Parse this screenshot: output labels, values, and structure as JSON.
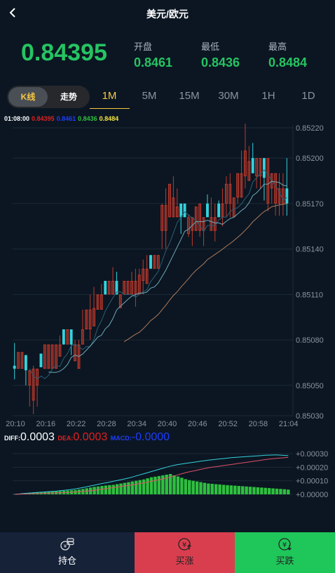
{
  "header": {
    "title": "美元/欧元"
  },
  "quote": {
    "price": "0.84395",
    "open_label": "开盘",
    "open": "0.8461",
    "low_label": "最低",
    "low": "0.8436",
    "high_label": "最高",
    "high": "0.8484"
  },
  "tabs": {
    "kline": "K线",
    "trend": "走势",
    "timeframes": [
      "1M",
      "5M",
      "15M",
      "30M",
      "1H",
      "1D"
    ],
    "active_timeframe": "1M"
  },
  "legend": {
    "time": "01:08:00",
    "values": [
      "0.84395",
      "0.8461",
      "0.8436",
      "0.8484"
    ],
    "colors": [
      "#e02020",
      "#1e3cff",
      "#2fbf3f",
      "#f5e642"
    ]
  },
  "chart_data": [
    {
      "type": "candlestick",
      "x_ticks": [
        "20:10",
        "20:16",
        "20:22",
        "20:28",
        "20:34",
        "20:40",
        "20:46",
        "20:52",
        "20:58",
        "21:04"
      ],
      "y_ticks": [
        "0.85220",
        "0.85200",
        "0.85170",
        "0.85140",
        "0.85110",
        "0.85080",
        "0.85050",
        "0.85030"
      ],
      "ylim": [
        0.8503,
        0.8522
      ],
      "colors": {
        "up": "#34d3dc",
        "down": "#c0392b",
        "ma1": "#2b5f73",
        "ma2": "#b07a5a",
        "ma3": "#6fa8b8"
      },
      "candles": [
        {
          "o": 0.85061,
          "c": 0.85063,
          "h": 0.85078,
          "l": 0.85054
        },
        {
          "o": 0.85072,
          "c": 0.85061,
          "h": 0.85072,
          "l": 0.85061
        },
        {
          "o": 0.85072,
          "c": 0.85061,
          "h": 0.85072,
          "l": 0.85061
        },
        {
          "o": 0.8506,
          "c": 0.8507,
          "h": 0.8507,
          "l": 0.8505
        },
        {
          "o": 0.8506,
          "c": 0.8505,
          "h": 0.8506,
          "l": 0.85036
        },
        {
          "o": 0.85061,
          "c": 0.8504,
          "h": 0.85063,
          "l": 0.85031
        },
        {
          "o": 0.85061,
          "c": 0.8505,
          "h": 0.85061,
          "l": 0.85036
        },
        {
          "o": 0.85062,
          "c": 0.85071,
          "h": 0.85071,
          "l": 0.85062
        },
        {
          "o": 0.85077,
          "c": 0.85061,
          "h": 0.85077,
          "l": 0.85061
        },
        {
          "o": 0.85077,
          "c": 0.85061,
          "h": 0.85077,
          "l": 0.85061
        },
        {
          "o": 0.85077,
          "c": 0.85061,
          "h": 0.85077,
          "l": 0.85061
        },
        {
          "o": 0.85077,
          "c": 0.85061,
          "h": 0.85077,
          "l": 0.85061
        },
        {
          "o": 0.85077,
          "c": 0.85069,
          "h": 0.85083,
          "l": 0.85069
        },
        {
          "o": 0.85077,
          "c": 0.85087,
          "h": 0.85087,
          "l": 0.85077
        },
        {
          "o": 0.85087,
          "c": 0.85077,
          "h": 0.85087,
          "l": 0.85077
        },
        {
          "o": 0.85077,
          "c": 0.85087,
          "h": 0.85087,
          "l": 0.8507
        },
        {
          "o": 0.85077,
          "c": 0.85066,
          "h": 0.8508,
          "l": 0.85066
        },
        {
          "o": 0.85077,
          "c": 0.85061,
          "h": 0.8508,
          "l": 0.85061
        },
        {
          "o": 0.85087,
          "c": 0.85077,
          "h": 0.851,
          "l": 0.85077
        },
        {
          "o": 0.851,
          "c": 0.85087,
          "h": 0.851,
          "l": 0.85087
        },
        {
          "o": 0.851,
          "c": 0.85087,
          "h": 0.8511,
          "l": 0.8508
        },
        {
          "o": 0.85101,
          "c": 0.85089,
          "h": 0.85115,
          "l": 0.85089
        },
        {
          "o": 0.8511,
          "c": 0.851,
          "h": 0.8511,
          "l": 0.851
        },
        {
          "o": 0.8511,
          "c": 0.851,
          "h": 0.85117,
          "l": 0.851
        },
        {
          "o": 0.8511,
          "c": 0.85119,
          "h": 0.85119,
          "l": 0.8511
        },
        {
          "o": 0.85119,
          "c": 0.8511,
          "h": 0.85119,
          "l": 0.8511
        },
        {
          "o": 0.85119,
          "c": 0.8511,
          "h": 0.85128,
          "l": 0.8511
        },
        {
          "o": 0.8511,
          "c": 0.85119,
          "h": 0.85125,
          "l": 0.8511
        },
        {
          "o": 0.8511,
          "c": 0.85101,
          "h": 0.8511,
          "l": 0.85101
        },
        {
          "o": 0.85119,
          "c": 0.8511,
          "h": 0.85119,
          "l": 0.8511
        },
        {
          "o": 0.85119,
          "c": 0.8511,
          "h": 0.85119,
          "l": 0.8511
        },
        {
          "o": 0.85119,
          "c": 0.8511,
          "h": 0.85125,
          "l": 0.8511
        },
        {
          "o": 0.85119,
          "c": 0.8511,
          "h": 0.85127,
          "l": 0.85102
        },
        {
          "o": 0.85123,
          "c": 0.8511,
          "h": 0.85127,
          "l": 0.8511
        },
        {
          "o": 0.85127,
          "c": 0.85119,
          "h": 0.85133,
          "l": 0.8511
        },
        {
          "o": 0.85127,
          "c": 0.85117,
          "h": 0.85136,
          "l": 0.85117
        },
        {
          "o": 0.85127,
          "c": 0.85136,
          "h": 0.85136,
          "l": 0.85127
        },
        {
          "o": 0.85136,
          "c": 0.85127,
          "h": 0.85136,
          "l": 0.85127
        },
        {
          "o": 0.85136,
          "c": 0.85127,
          "h": 0.85136,
          "l": 0.85127
        },
        {
          "o": 0.85169,
          "c": 0.85152,
          "h": 0.8517,
          "l": 0.8514
        },
        {
          "o": 0.85169,
          "c": 0.85152,
          "h": 0.8518,
          "l": 0.8514
        },
        {
          "o": 0.85183,
          "c": 0.85161,
          "h": 0.85183,
          "l": 0.85161
        },
        {
          "o": 0.85174,
          "c": 0.85161,
          "h": 0.85188,
          "l": 0.85161
        },
        {
          "o": 0.85168,
          "c": 0.85161,
          "h": 0.8518,
          "l": 0.85161
        },
        {
          "o": 0.85161,
          "c": 0.8517,
          "h": 0.8517,
          "l": 0.8515
        },
        {
          "o": 0.85161,
          "c": 0.8517,
          "h": 0.8517,
          "l": 0.85161
        },
        {
          "o": 0.85161,
          "c": 0.8515,
          "h": 0.85163,
          "l": 0.85148
        },
        {
          "o": 0.85161,
          "c": 0.85152,
          "h": 0.85161,
          "l": 0.85142
        },
        {
          "o": 0.85168,
          "c": 0.85152,
          "h": 0.85168,
          "l": 0.85152
        },
        {
          "o": 0.8517,
          "c": 0.85152,
          "h": 0.8517,
          "l": 0.85148
        },
        {
          "o": 0.85161,
          "c": 0.85152,
          "h": 0.85161,
          "l": 0.85142
        },
        {
          "o": 0.85161,
          "c": 0.8517,
          "h": 0.85176,
          "l": 0.85161
        },
        {
          "o": 0.85161,
          "c": 0.85152,
          "h": 0.85174,
          "l": 0.85152
        },
        {
          "o": 0.85161,
          "c": 0.85152,
          "h": 0.8517,
          "l": 0.85145
        },
        {
          "o": 0.85161,
          "c": 0.8517,
          "h": 0.85172,
          "l": 0.85161
        },
        {
          "o": 0.8517,
          "c": 0.85161,
          "h": 0.8518,
          "l": 0.85155
        },
        {
          "o": 0.85183,
          "c": 0.8517,
          "h": 0.85188,
          "l": 0.85161
        },
        {
          "o": 0.85183,
          "c": 0.8517,
          "h": 0.8519,
          "l": 0.85161
        },
        {
          "o": 0.85174,
          "c": 0.85161,
          "h": 0.85174,
          "l": 0.85161
        },
        {
          "o": 0.8519,
          "c": 0.85174,
          "h": 0.8519,
          "l": 0.8517
        },
        {
          "o": 0.8519,
          "c": 0.85174,
          "h": 0.85205,
          "l": 0.85174
        },
        {
          "o": 0.85205,
          "c": 0.85188,
          "h": 0.85223,
          "l": 0.8518
        },
        {
          "o": 0.85198,
          "c": 0.85185,
          "h": 0.85208,
          "l": 0.85185
        },
        {
          "o": 0.8519,
          "c": 0.852,
          "h": 0.8521,
          "l": 0.8519
        },
        {
          "o": 0.852,
          "c": 0.85188,
          "h": 0.852,
          "l": 0.8518
        },
        {
          "o": 0.852,
          "c": 0.85188,
          "h": 0.852,
          "l": 0.8518
        },
        {
          "o": 0.85187,
          "c": 0.852,
          "h": 0.852,
          "l": 0.85172
        },
        {
          "o": 0.852,
          "c": 0.8517,
          "h": 0.852,
          "l": 0.85165
        },
        {
          "o": 0.8519,
          "c": 0.8518,
          "h": 0.8519,
          "l": 0.8517
        },
        {
          "o": 0.8519,
          "c": 0.8517,
          "h": 0.8519,
          "l": 0.85162
        },
        {
          "o": 0.8518,
          "c": 0.8517,
          "h": 0.8519,
          "l": 0.85162
        },
        {
          "o": 0.8518,
          "c": 0.8517,
          "h": 0.8519,
          "l": 0.85162
        },
        {
          "o": 0.8517,
          "c": 0.8518,
          "h": 0.852,
          "l": 0.85162
        }
      ]
    },
    {
      "type": "macd",
      "labels": {
        "diff": "DIFF:",
        "dea": "DEA:",
        "macd": "MACD:"
      },
      "values": {
        "diff": "0.0003",
        "dea": "0.0003",
        "macd": "-0.0000"
      },
      "label_colors": {
        "diff": "#ffffff",
        "dea": "#e02020",
        "macd": "#1e3cff"
      },
      "y_ticks": [
        "+0.00030",
        "+0.00020",
        "+0.00010",
        "+0.00000"
      ],
      "ylim": [
        0,
        0.0003
      ],
      "bar_color": "#2fbf3f",
      "line_colors": {
        "diff": "#34d3dc",
        "dea": "#e0506a"
      },
      "bars": [
        2e-06,
        5e-06,
        8e-06,
        1e-05,
        1.2e-05,
        1.4e-05,
        1.6e-05,
        1.7e-05,
        1.8e-05,
        1.9e-05,
        2e-05,
        2.2e-05,
        2.4e-05,
        2.6e-05,
        2.8e-05,
        3e-05,
        3.2e-05,
        3.6e-05,
        4e-05,
        4.5e-05,
        5e-05,
        5.5e-05,
        5.8e-05,
        6.2e-05,
        6.5e-05,
        6.8e-05,
        7e-05,
        7.5e-05,
        8e-05,
        8.5e-05,
        9e-05,
        9.5e-05,
        0.0001,
        0.000105,
        0.00011,
        0.000118,
        0.000126,
        0.00013,
        0.000135,
        0.00014,
        0.000145,
        0.00015,
        0.00014,
        0.000132,
        0.000122,
        0.000112,
        0.000105,
        0.0001,
        9.5e-05,
        9e-05,
        8.5e-05,
        8e-05,
        7.8e-05,
        7.5e-05,
        7.3e-05,
        7e-05,
        6.8e-05,
        6.6e-05,
        6.4e-05,
        6.2e-05,
        6e-05,
        5.8e-05,
        5.6e-05,
        5.4e-05,
        5.2e-05,
        5e-05,
        4.8e-05,
        4.6e-05,
        4.4e-05,
        4.2e-05,
        4e-05,
        3.8e-05,
        3.5e-05
      ],
      "diff": [
        0,
        2e-06,
        5e-06,
        8e-06,
        1e-05,
        1.2e-05,
        1.4e-05,
        1.6e-05,
        1.8e-05,
        2e-05,
        2.2e-05,
        2.4e-05,
        2.7e-05,
        3e-05,
        3.3e-05,
        3.6e-05,
        4e-05,
        4.5e-05,
        5e-05,
        5.6e-05,
        6.2e-05,
        6.8e-05,
        7.4e-05,
        8e-05,
        8.5e-05,
        9e-05,
        9.6e-05,
        0.000102,
        0.000108,
        0.000114,
        0.00012,
        0.000128,
        0.000136,
        0.000144,
        0.000152,
        0.00016,
        0.000168,
        0.000176,
        0.000184,
        0.000192,
        0.0002,
        0.000208,
        0.000214,
        0.00022,
        0.000224,
        0.000228,
        0.000232,
        0.000236,
        0.00024,
        0.000244,
        0.000248,
        0.000252,
        0.000255,
        0.000258,
        0.000261,
        0.000264,
        0.000267,
        0.00027,
        0.000272,
        0.000274,
        0.000276,
        0.000278,
        0.00028,
        0.000282,
        0.000284,
        0.000286,
        0.000288,
        0.000289,
        0.00029,
        0.00029,
        0.000289,
        0.000287,
        0.000285
      ],
      "dea": [
        0,
        1e-06,
        2e-06,
        3e-06,
        4e-06,
        5e-06,
        6e-06,
        7e-06,
        8e-06,
        9e-06,
        1e-05,
        1.1e-05,
        1.2e-05,
        1.3e-05,
        1.4e-05,
        1.5e-05,
        1.7e-05,
        1.9e-05,
        2.1e-05,
        2.4e-05,
        2.7e-05,
        3e-05,
        3.4e-05,
        3.8e-05,
        4.2e-05,
        4.6e-05,
        5e-05,
        5.4e-05,
        5.8e-05,
        6.2e-05,
        6.6e-05,
        7e-05,
        7.5e-05,
        8e-05,
        8.5e-05,
        9e-05,
        9.6e-05,
        0.000102,
        0.000108,
        0.000114,
        0.00012,
        0.000128,
        0.000136,
        0.000144,
        0.000152,
        0.00016,
        0.000166,
        0.000172,
        0.000178,
        0.000184,
        0.00019,
        0.000196,
        0.0002,
        0.000204,
        0.000208,
        0.000212,
        0.000216,
        0.00022,
        0.000224,
        0.000228,
        0.000232,
        0.000236,
        0.00024,
        0.000244,
        0.000248,
        0.000252,
        0.000256,
        0.00026,
        0.000263,
        0.000266,
        0.000268,
        0.00027,
        0.000272
      ]
    }
  ],
  "bottom": {
    "hold": "持仓",
    "buy_up": "买涨",
    "buy_down": "买跌",
    "colors": {
      "hold_bg": "#152238",
      "up_bg": "#d93e4f",
      "down_bg": "#1fc65a"
    }
  }
}
